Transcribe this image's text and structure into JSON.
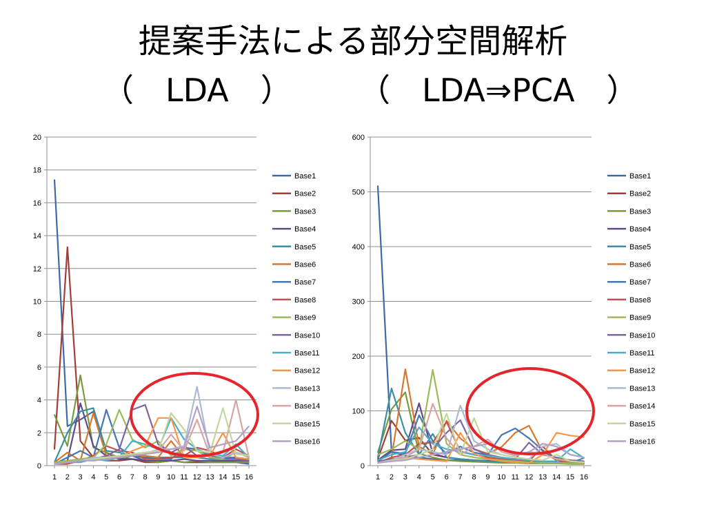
{
  "slide": {
    "title": "提案手法による部分空間解析",
    "subtitle_left": "（　LDA　）",
    "subtitle_right": "（　LDA⇒PCA　）"
  },
  "highlight_color": "#e3262c",
  "chart_data": [
    {
      "type": "line",
      "title": "",
      "xlabel": "",
      "ylabel": "",
      "ylim": [
        0,
        20
      ],
      "yticks": [
        0,
        2,
        4,
        6,
        8,
        10,
        12,
        14,
        16,
        18,
        20
      ],
      "grid": true,
      "legend": "right",
      "x": [
        1,
        2,
        3,
        4,
        5,
        6,
        7,
        8,
        9,
        10,
        11,
        12,
        13,
        14,
        15,
        16
      ],
      "series": [
        {
          "name": "Base1",
          "color": "#3c6aa4",
          "values": [
            17.4,
            2.4,
            2.8,
            3.3,
            0.8,
            0.4,
            0.6,
            0.3,
            0.2,
            0.3,
            0.2,
            0.2,
            0.2,
            0.3,
            0.2,
            0.1
          ]
        },
        {
          "name": "Base2",
          "color": "#a33d3a",
          "values": [
            1.0,
            13.3,
            1.5,
            0.5,
            0.3,
            0.3,
            0.4,
            0.2,
            0.2,
            0.3,
            0.2,
            0.2,
            0.2,
            0.2,
            0.2,
            0.2
          ]
        },
        {
          "name": "Base3",
          "color": "#7a9a3f",
          "values": [
            3.1,
            1.2,
            5.5,
            1.1,
            0.8,
            0.5,
            0.4,
            0.3,
            0.2,
            0.3,
            0.2,
            0.3,
            0.2,
            0.2,
            0.2,
            0.2
          ]
        },
        {
          "name": "Base4",
          "color": "#5f4a8b",
          "values": [
            0.2,
            0.3,
            3.8,
            1.2,
            0.6,
            0.4,
            0.4,
            0.3,
            0.3,
            0.3,
            0.4,
            0.3,
            0.3,
            0.3,
            0.3,
            0.3
          ]
        },
        {
          "name": "Base5",
          "color": "#3a8fa6",
          "values": [
            0.2,
            2.0,
            3.3,
            3.5,
            0.9,
            0.8,
            0.6,
            0.5,
            0.5,
            0.5,
            0.5,
            0.5,
            0.4,
            0.4,
            0.4,
            0.4
          ]
        },
        {
          "name": "Base6",
          "color": "#d9762c",
          "values": [
            0.2,
            0.8,
            0.3,
            3.2,
            0.6,
            0.5,
            0.7,
            0.6,
            0.5,
            1.5,
            0.5,
            0.5,
            0.8,
            0.5,
            0.4,
            0.4
          ]
        },
        {
          "name": "Base7",
          "color": "#4377b5",
          "values": [
            0.1,
            0.5,
            0.9,
            0.5,
            3.4,
            1.1,
            0.6,
            0.5,
            0.4,
            0.4,
            1.1,
            1.0,
            0.6,
            0.5,
            0.5,
            0.4
          ]
        },
        {
          "name": "Base8",
          "color": "#c0504d",
          "values": [
            0.1,
            0.1,
            0.3,
            0.6,
            1.2,
            0.9,
            0.8,
            0.4,
            0.4,
            0.5,
            0.6,
            1.1,
            0.9,
            0.5,
            1.0,
            0.6
          ]
        },
        {
          "name": "Base9",
          "color": "#9bbb59",
          "values": [
            0.2,
            0.3,
            0.4,
            0.5,
            1.3,
            3.4,
            1.6,
            1.1,
            1.5,
            0.6,
            1.0,
            0.9,
            0.5,
            0.4,
            0.8,
            0.5
          ]
        },
        {
          "name": "Base10",
          "color": "#8064a2",
          "values": [
            0.1,
            0.2,
            0.3,
            0.4,
            0.6,
            1.0,
            3.4,
            3.7,
            1.3,
            0.8,
            1.2,
            0.6,
            0.6,
            0.5,
            0.4,
            0.3
          ]
        },
        {
          "name": "Base11",
          "color": "#4bacc6",
          "values": [
            0.1,
            0.2,
            0.2,
            0.4,
            0.3,
            0.5,
            1.5,
            1.3,
            1.0,
            2.9,
            1.6,
            1.0,
            0.7,
            0.6,
            1.3,
            0.5
          ]
        },
        {
          "name": "Base12",
          "color": "#f79646",
          "values": [
            0.1,
            0.2,
            0.3,
            0.4,
            0.5,
            0.5,
            0.9,
            1.2,
            2.9,
            2.9,
            0.5,
            0.5,
            0.6,
            2.0,
            0.5,
            0.4
          ]
        },
        {
          "name": "Base13",
          "color": "#aabad7",
          "values": [
            0.1,
            0.2,
            0.3,
            0.5,
            0.5,
            0.5,
            0.6,
            0.7,
            1.0,
            1.0,
            1.2,
            4.8,
            0.7,
            0.5,
            0.8,
            0.6
          ]
        },
        {
          "name": "Base14",
          "color": "#d9a5a4",
          "values": [
            0.1,
            0.2,
            0.3,
            0.4,
            0.5,
            0.5,
            0.6,
            0.7,
            0.9,
            1.9,
            0.9,
            2.8,
            0.6,
            0.8,
            4.0,
            0.5
          ]
        },
        {
          "name": "Base15",
          "color": "#c3d69b",
          "values": [
            0.1,
            0.2,
            0.3,
            0.4,
            0.5,
            0.6,
            0.7,
            0.8,
            0.9,
            3.2,
            2.2,
            0.9,
            0.8,
            3.5,
            0.7,
            0.6
          ]
        },
        {
          "name": "Base16",
          "color": "#b2a1c7",
          "values": [
            0.1,
            0.2,
            0.3,
            0.3,
            0.4,
            0.5,
            0.6,
            0.7,
            0.8,
            1.0,
            1.1,
            3.6,
            1.1,
            1.3,
            1.5,
            2.4
          ]
        }
      ]
    },
    {
      "type": "line",
      "title": "",
      "xlabel": "",
      "ylabel": "",
      "ylim": [
        0,
        600
      ],
      "yticks": [
        0,
        100,
        200,
        300,
        400,
        500,
        600
      ],
      "grid": true,
      "legend": "right",
      "x": [
        1,
        2,
        3,
        4,
        5,
        6,
        7,
        8,
        9,
        10,
        11,
        12,
        13,
        14,
        15,
        16
      ],
      "series": [
        {
          "name": "Base1",
          "color": "#3c6aa4",
          "values": [
            511,
            25,
            18,
            15,
            12,
            10,
            10,
            9,
            8,
            8,
            7,
            7,
            6,
            6,
            5,
            5
          ]
        },
        {
          "name": "Base2",
          "color": "#a33d3a",
          "values": [
            12,
            82,
            46,
            51,
            20,
            15,
            12,
            10,
            8,
            7,
            6,
            6,
            5,
            5,
            5,
            4
          ]
        },
        {
          "name": "Base3",
          "color": "#7a9a3f",
          "values": [
            24,
            103,
            134,
            22,
            15,
            10,
            8,
            7,
            6,
            5,
            5,
            4,
            4,
            4,
            3,
            3
          ]
        },
        {
          "name": "Base4",
          "color": "#5f4a8b",
          "values": [
            10,
            28,
            30,
            114,
            22,
            15,
            12,
            10,
            9,
            8,
            7,
            6,
            6,
            5,
            5,
            4
          ]
        },
        {
          "name": "Base5",
          "color": "#3a8fa6",
          "values": [
            15,
            141,
            60,
            20,
            58,
            15,
            12,
            10,
            8,
            7,
            6,
            6,
            5,
            5,
            5,
            14
          ]
        },
        {
          "name": "Base6",
          "color": "#d9762c",
          "values": [
            5,
            15,
            176,
            35,
            20,
            82,
            50,
            30,
            22,
            34,
            60,
            73,
            25,
            10,
            5,
            3
          ]
        },
        {
          "name": "Base7",
          "color": "#4377b5",
          "values": [
            8,
            25,
            22,
            92,
            45,
            22,
            35,
            24,
            20,
            56,
            68,
            50,
            28,
            10,
            8,
            6
          ]
        },
        {
          "name": "Base8",
          "color": "#c0504d",
          "values": [
            5,
            15,
            20,
            40,
            42,
            80,
            26,
            20,
            15,
            12,
            10,
            8,
            35,
            10,
            8,
            6
          ]
        },
        {
          "name": "Base9",
          "color": "#9bbb59",
          "values": [
            20,
            30,
            45,
            30,
            175,
            40,
            20,
            15,
            12,
            10,
            8,
            6,
            5,
            5,
            4,
            4
          ]
        },
        {
          "name": "Base10",
          "color": "#8064a2",
          "values": [
            8,
            12,
            15,
            20,
            30,
            60,
            83,
            30,
            20,
            15,
            12,
            42,
            20,
            15,
            10,
            8
          ]
        },
        {
          "name": "Base11",
          "color": "#4bacc6",
          "values": [
            10,
            20,
            25,
            70,
            40,
            30,
            25,
            20,
            18,
            15,
            12,
            10,
            8,
            8,
            30,
            14
          ]
        },
        {
          "name": "Base12",
          "color": "#f79646",
          "values": [
            5,
            10,
            15,
            12,
            10,
            8,
            60,
            22,
            12,
            8,
            6,
            5,
            20,
            60,
            55,
            52
          ]
        },
        {
          "name": "Base13",
          "color": "#aabad7",
          "values": [
            5,
            10,
            20,
            30,
            25,
            20,
            110,
            45,
            30,
            20,
            15,
            12,
            35,
            40,
            20,
            15
          ]
        },
        {
          "name": "Base14",
          "color": "#d9a5a4",
          "values": [
            5,
            10,
            15,
            30,
            113,
            50,
            20,
            35,
            48,
            25,
            18,
            25,
            22,
            12,
            8,
            6
          ]
        },
        {
          "name": "Base15",
          "color": "#c3d69b",
          "values": [
            5,
            10,
            12,
            20,
            30,
            95,
            20,
            87,
            25,
            20,
            15,
            12,
            10,
            20,
            8,
            6
          ]
        },
        {
          "name": "Base16",
          "color": "#b2a1c7",
          "values": [
            5,
            8,
            10,
            15,
            20,
            25,
            30,
            35,
            40,
            30,
            20,
            25,
            40,
            35,
            20,
            15
          ]
        }
      ]
    }
  ]
}
